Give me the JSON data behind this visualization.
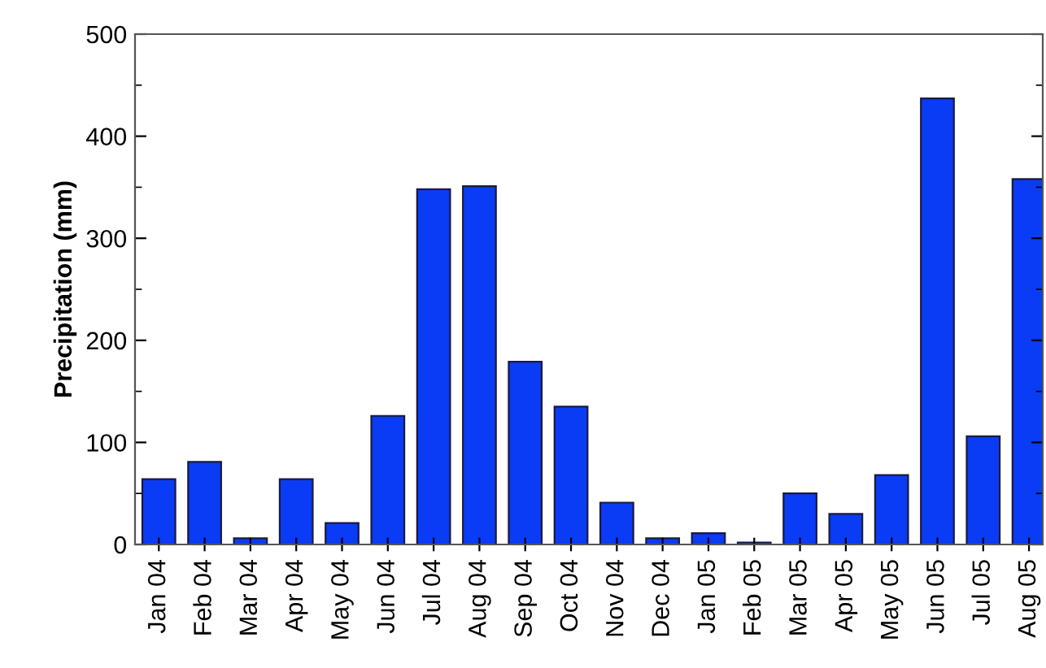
{
  "chart_data": {
    "type": "bar",
    "ylabel": "Precipitation (mm)",
    "categories": [
      "Jan 04",
      "Feb 04",
      "Mar 04",
      "Apr 04",
      "May 04",
      "Jun 04",
      "Jul 04",
      "Aug 04",
      "Sep 04",
      "Oct 04",
      "Nov 04",
      "Dec 04",
      "Jan 05",
      "Feb 05",
      "Mar 05",
      "Apr 05",
      "May 05",
      "Jun 05",
      "Jul 05",
      "Aug 05"
    ],
    "values": [
      64,
      81,
      6,
      64,
      21,
      126,
      348,
      351,
      179,
      135,
      41,
      6,
      11,
      2,
      50,
      30,
      68,
      437,
      106,
      358
    ],
    "color": "#0a3cf5",
    "ylim": [
      0,
      500
    ],
    "yticks": [
      0,
      100,
      200,
      300,
      400,
      500
    ],
    "grid": false,
    "legend": false
  }
}
